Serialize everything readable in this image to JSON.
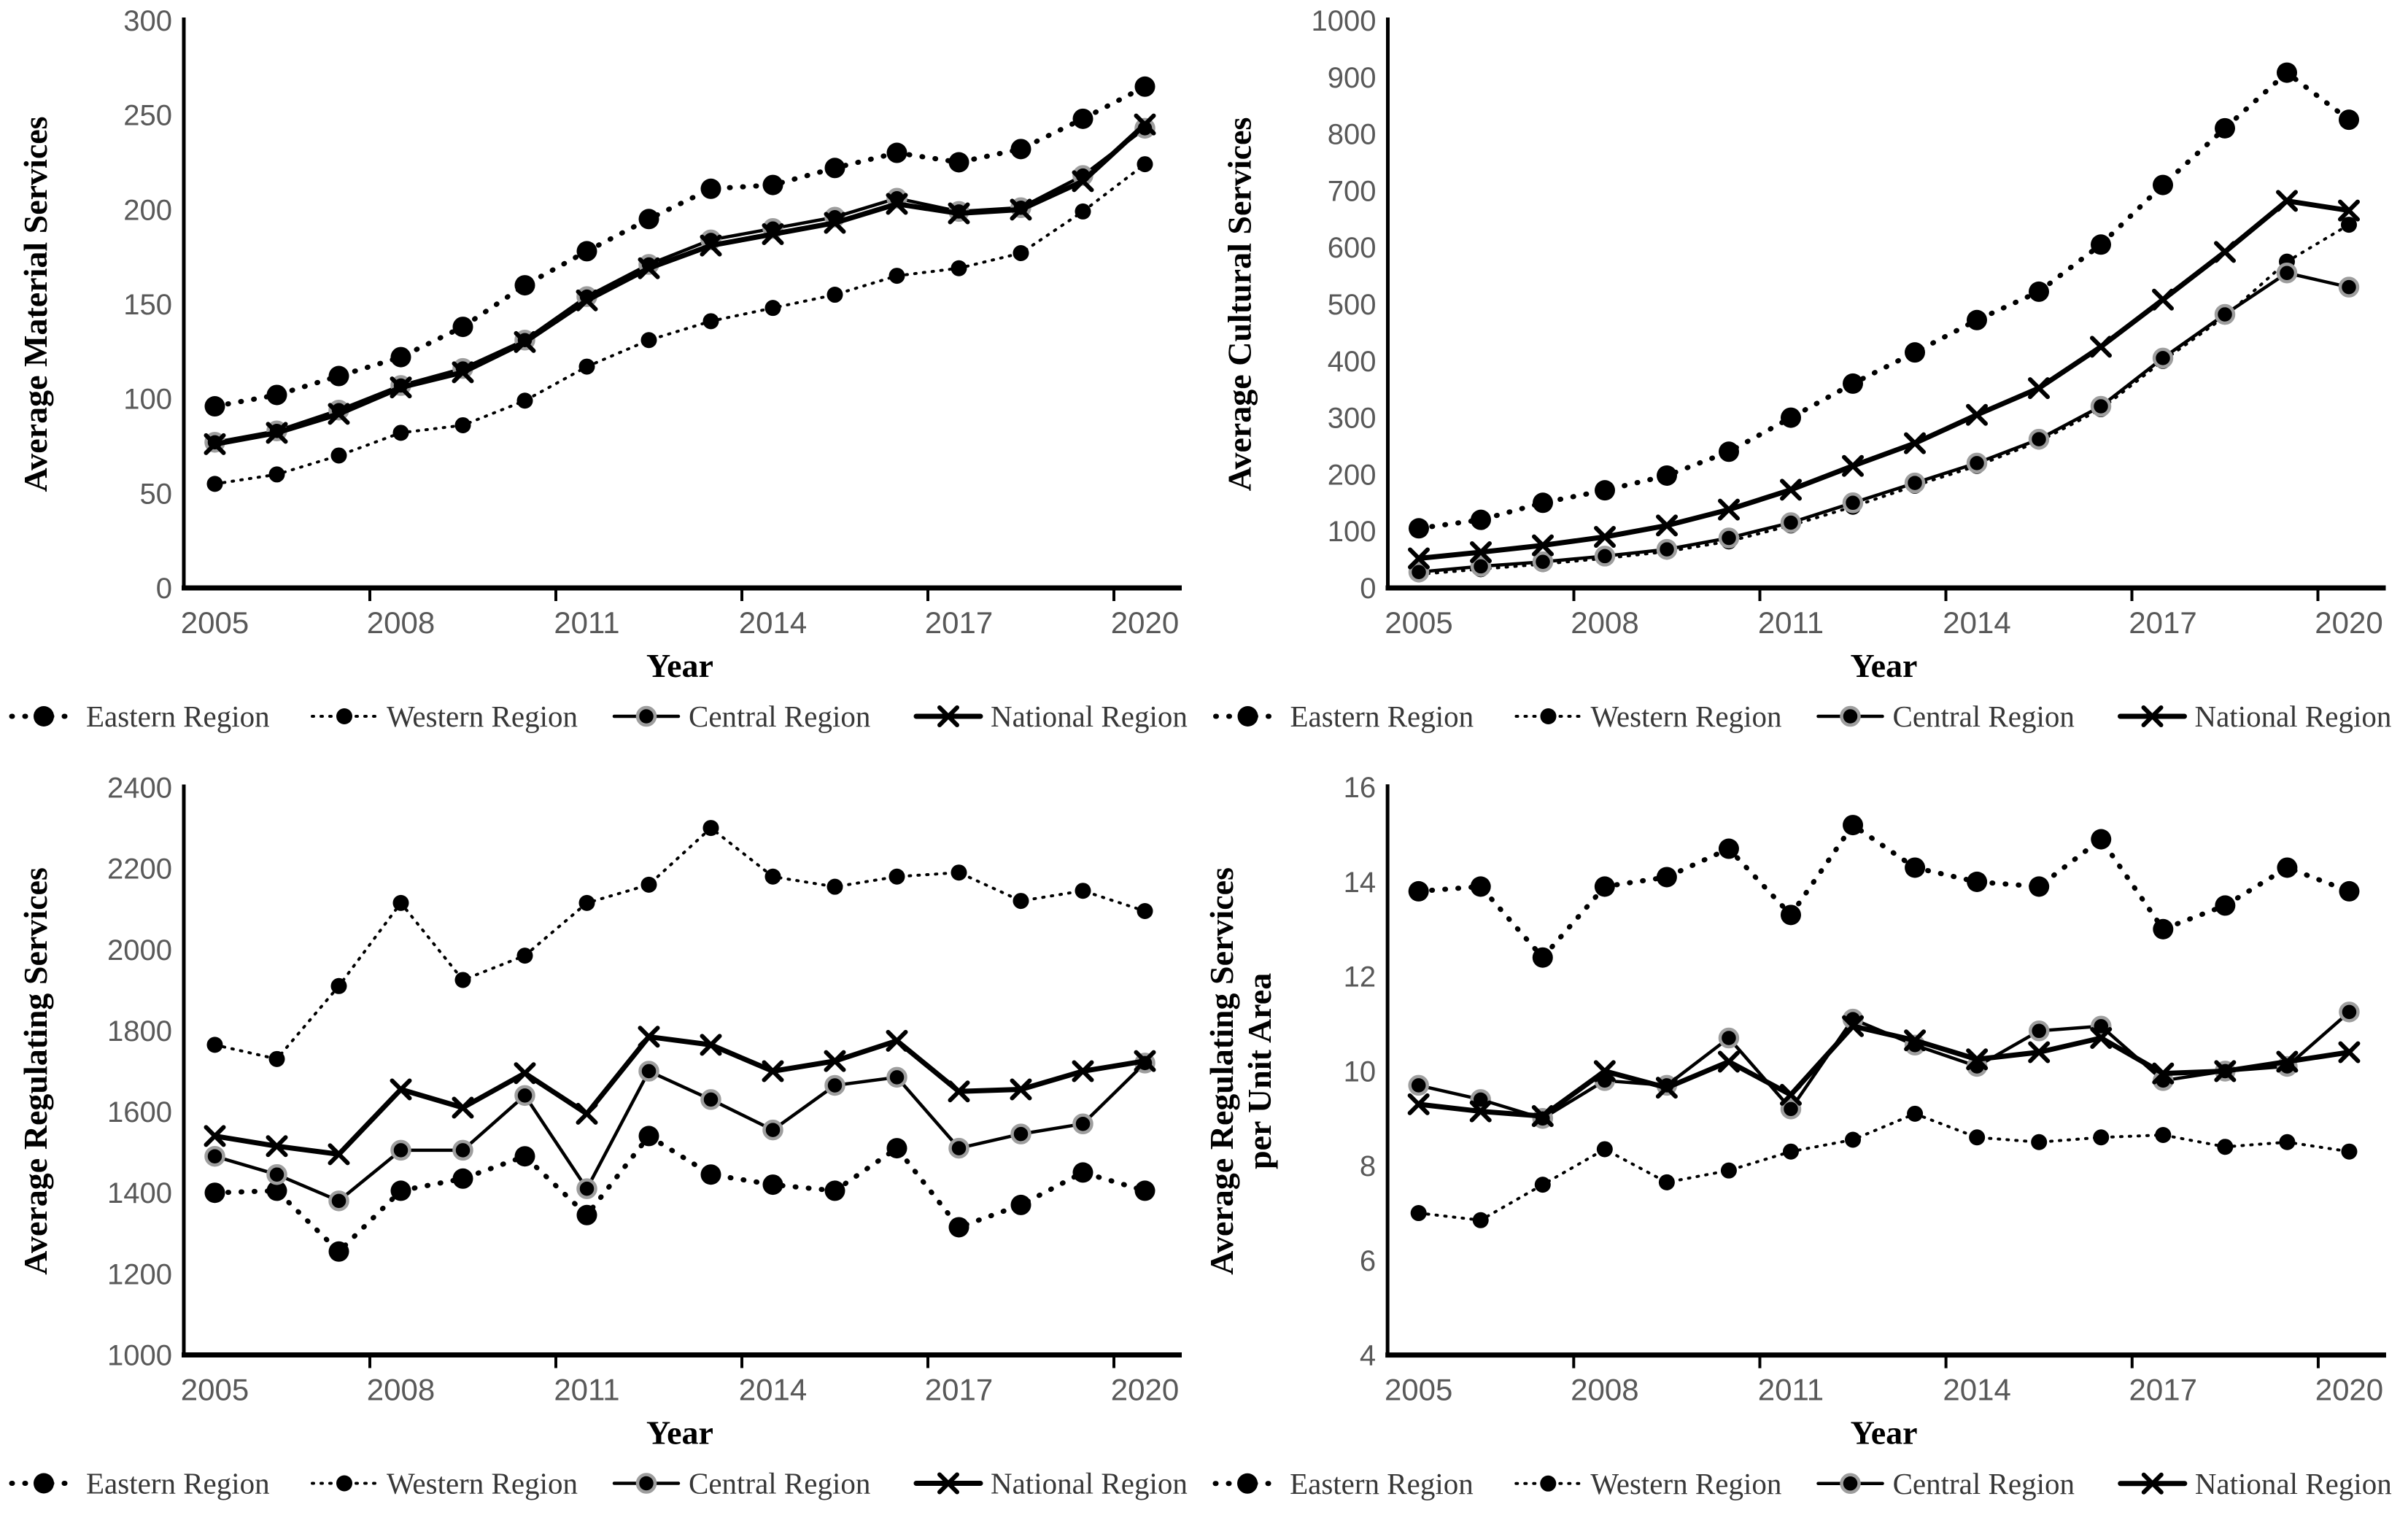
{
  "page": {
    "background": "#ffffff",
    "text_color": "#000000",
    "tick_color": "#595959",
    "legend_text_color": "#383838"
  },
  "shared": {
    "xlabel": "Year",
    "years": [
      2005,
      2006,
      2007,
      2008,
      2009,
      2010,
      2011,
      2012,
      2013,
      2014,
      2015,
      2016,
      2017,
      2018,
      2019,
      2020
    ],
    "xtick_labels": [
      "2005",
      "2008",
      "2011",
      "2014",
      "2017",
      "2020"
    ],
    "xtick_interval": 3,
    "legend_labels": [
      "Eastern Region",
      "Western Region",
      "Central Region",
      "National Region"
    ]
  },
  "chart_data": [
    {
      "type": "line",
      "ylabel_lines": [
        "Average Material Services"
      ],
      "xlabel": "Year",
      "ylim": [
        0,
        300
      ],
      "ytick_step": 50,
      "grid": false,
      "legend_position": "bottom",
      "series": [
        {
          "name": "Eastern Region",
          "style": "eastern",
          "color": "#000000",
          "values": [
            96,
            102,
            112,
            122,
            138,
            160,
            178,
            195,
            211,
            213,
            222,
            230,
            225,
            232,
            248,
            265
          ]
        },
        {
          "name": "Western Region",
          "style": "western",
          "color": "#000000",
          "values": [
            55,
            60,
            70,
            82,
            86,
            99,
            117,
            131,
            141,
            148,
            155,
            165,
            169,
            177,
            199,
            224
          ]
        },
        {
          "name": "Central Region",
          "style": "central",
          "color": "#000000",
          "values": [
            77,
            83,
            94,
            107,
            116,
            131,
            154,
            171,
            184,
            190,
            196,
            206,
            199,
            201,
            218,
            243
          ]
        },
        {
          "name": "National Region",
          "style": "national",
          "color": "#000000",
          "values": [
            76,
            82,
            92,
            106,
            114,
            130,
            152,
            169,
            181,
            187,
            193,
            203,
            198,
            200,
            215,
            245
          ]
        }
      ]
    },
    {
      "type": "line",
      "ylabel_lines": [
        "Average Cultural Services"
      ],
      "xlabel": "Year",
      "ylim": [
        0,
        1000
      ],
      "ytick_step": 100,
      "grid": false,
      "legend_position": "bottom",
      "series": [
        {
          "name": "Eastern Region",
          "style": "eastern",
          "color": "#000000",
          "values": [
            105,
            120,
            150,
            172,
            198,
            240,
            300,
            360,
            415,
            472,
            522,
            605,
            710,
            810,
            908,
            825
          ]
        },
        {
          "name": "Western Region",
          "style": "western",
          "color": "#000000",
          "values": [
            24,
            33,
            42,
            52,
            64,
            82,
            110,
            143,
            180,
            215,
            258,
            315,
            400,
            478,
            575,
            640
          ]
        },
        {
          "name": "Central Region",
          "style": "central",
          "color": "#000000",
          "values": [
            28,
            38,
            46,
            56,
            68,
            88,
            115,
            150,
            185,
            220,
            262,
            320,
            405,
            482,
            555,
            530
          ]
        },
        {
          "name": "National Region",
          "style": "national",
          "color": "#000000",
          "values": [
            52,
            63,
            75,
            90,
            110,
            138,
            173,
            215,
            255,
            305,
            352,
            425,
            508,
            592,
            682,
            665
          ]
        }
      ]
    },
    {
      "type": "line",
      "ylabel_lines": [
        "Average Regulating Services"
      ],
      "xlabel": "Year",
      "ylim": [
        1000,
        2400
      ],
      "ytick_step": 200,
      "grid": false,
      "legend_position": "bottom",
      "series": [
        {
          "name": "Eastern Region",
          "style": "eastern",
          "color": "#000000",
          "values": [
            1400,
            1405,
            1255,
            1405,
            1435,
            1490,
            1345,
            1540,
            1445,
            1420,
            1405,
            1510,
            1315,
            1370,
            1450,
            1405
          ]
        },
        {
          "name": "Western Region",
          "style": "western",
          "color": "#000000",
          "values": [
            1765,
            1730,
            1910,
            2115,
            1925,
            1985,
            2115,
            2160,
            2300,
            2180,
            2155,
            2180,
            2190,
            2120,
            2145,
            2095
          ]
        },
        {
          "name": "Central Region",
          "style": "central",
          "color": "#000000",
          "values": [
            1490,
            1445,
            1380,
            1505,
            1505,
            1640,
            1410,
            1700,
            1630,
            1555,
            1665,
            1685,
            1510,
            1545,
            1570,
            1720
          ]
        },
        {
          "name": "National Region",
          "style": "national",
          "color": "#000000",
          "values": [
            1540,
            1515,
            1495,
            1655,
            1610,
            1695,
            1595,
            1785,
            1765,
            1700,
            1725,
            1775,
            1650,
            1655,
            1700,
            1725
          ]
        }
      ]
    },
    {
      "type": "line",
      "ylabel_lines": [
        "Average Regulating Services",
        "per Unit Area"
      ],
      "xlabel": "Year",
      "ylim": [
        4,
        16
      ],
      "ytick_step": 2,
      "grid": false,
      "legend_position": "bottom",
      "series": [
        {
          "name": "Eastern Region",
          "style": "eastern",
          "color": "#000000",
          "values": [
            13.8,
            13.9,
            12.4,
            13.9,
            14.1,
            14.7,
            13.3,
            15.2,
            14.3,
            14.0,
            13.9,
            14.9,
            13.0,
            13.5,
            14.3,
            13.8
          ]
        },
        {
          "name": "Western Region",
          "style": "western",
          "color": "#000000",
          "values": [
            7.0,
            6.85,
            7.6,
            8.35,
            7.65,
            7.9,
            8.3,
            8.55,
            9.1,
            8.6,
            8.5,
            8.6,
            8.65,
            8.4,
            8.5,
            8.3
          ]
        },
        {
          "name": "Central Region",
          "style": "central",
          "color": "#000000",
          "values": [
            9.7,
            9.4,
            9.0,
            9.8,
            9.7,
            10.7,
            9.2,
            11.1,
            10.55,
            10.1,
            10.85,
            10.95,
            9.8,
            10.0,
            10.1,
            11.25
          ]
        },
        {
          "name": "National Region",
          "style": "national",
          "color": "#000000",
          "values": [
            9.3,
            9.15,
            9.05,
            10.0,
            9.65,
            10.2,
            9.5,
            10.95,
            10.65,
            10.25,
            10.4,
            10.7,
            9.95,
            10.0,
            10.2,
            10.4
          ]
        }
      ]
    }
  ]
}
